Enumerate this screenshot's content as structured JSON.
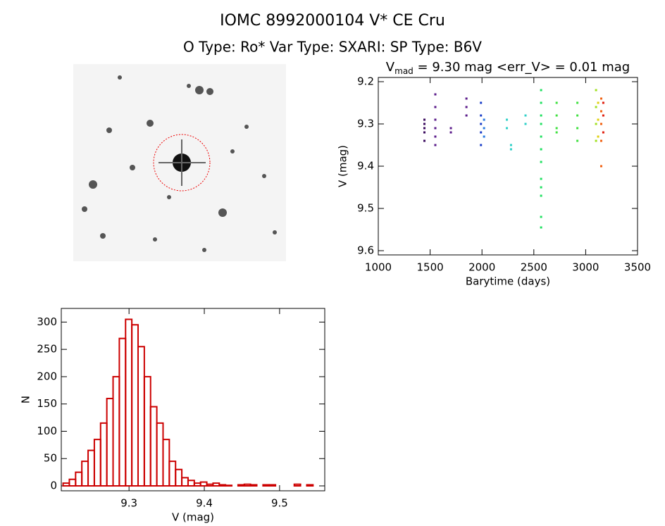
{
  "header": {
    "title": "IOMC 8992000104   V* CE Cru",
    "subtitle": "O Type: Ro*  Var Type: SXARI:  SP Type: B6V"
  },
  "chart_data": [
    {
      "type": "scatter",
      "title": {
        "main": "V",
        "sub": "mad",
        "rest": " = 9.30 mag <err_V> = 0.01 mag"
      },
      "x_label": "Barytime (days)",
      "y_label": "V (mag)",
      "xlim": [
        1000,
        3500
      ],
      "xticks": [
        1000,
        1500,
        2000,
        2500,
        3000,
        3500
      ],
      "ylim": [
        9.19,
        9.61
      ],
      "yticks": [
        9.2,
        9.3,
        9.4,
        9.5,
        9.6
      ],
      "y_inverted": true,
      "series": [
        {
          "color": "#3a0a5e",
          "x": [
            1445,
            1445,
            1445,
            1445,
            1445
          ],
          "values": [
            9.29,
            9.3,
            9.31,
            9.32,
            9.34
          ]
        },
        {
          "color": "#5a1a8a",
          "x": [
            1550,
            1550,
            1550,
            1550,
            1550,
            1550,
            1700,
            1700,
            1850,
            1850,
            1850
          ],
          "values": [
            9.23,
            9.26,
            9.29,
            9.31,
            9.33,
            9.35,
            9.31,
            9.32,
            9.24,
            9.26,
            9.28
          ]
        },
        {
          "color": "#1a3ec8",
          "x": [
            1990,
            1990,
            1990,
            1990,
            1990
          ],
          "values": [
            9.25,
            9.28,
            9.3,
            9.32,
            9.35
          ]
        },
        {
          "color": "#2a7ae0",
          "x": [
            2020,
            2020,
            2020
          ],
          "values": [
            9.29,
            9.31,
            9.33
          ]
        },
        {
          "color": "#30d0c8",
          "x": [
            2240,
            2240,
            2280,
            2280,
            2420,
            2420
          ],
          "values": [
            9.29,
            9.31,
            9.35,
            9.36,
            9.28,
            9.3
          ]
        },
        {
          "color": "#20e060",
          "x": [
            2570,
            2570,
            2570,
            2570,
            2570,
            2570,
            2570,
            2570,
            2570,
            2570,
            2570,
            2570
          ],
          "values": [
            9.22,
            9.25,
            9.28,
            9.3,
            9.33,
            9.36,
            9.39,
            9.43,
            9.45,
            9.47,
            9.52,
            9.545
          ]
        },
        {
          "color": "#40e040",
          "x": [
            2720,
            2720,
            2720,
            2720,
            2920,
            2920,
            2920,
            2920
          ],
          "values": [
            9.25,
            9.28,
            9.31,
            9.32,
            9.25,
            9.28,
            9.31,
            9.34
          ]
        },
        {
          "color": "#a0e020",
          "x": [
            3100,
            3100,
            3100,
            3100
          ],
          "values": [
            9.22,
            9.26,
            9.3,
            9.34
          ]
        },
        {
          "color": "#e0d010",
          "x": [
            3120,
            3120,
            3120
          ],
          "values": [
            9.25,
            9.29,
            9.33
          ]
        },
        {
          "color": "#f06010",
          "x": [
            3150,
            3150,
            3150,
            3150,
            3150
          ],
          "values": [
            9.24,
            9.27,
            9.3,
            9.34,
            9.4
          ]
        },
        {
          "color": "#e02010",
          "x": [
            3170,
            3170,
            3170
          ],
          "values": [
            9.25,
            9.28,
            9.32
          ]
        }
      ]
    },
    {
      "type": "histogram",
      "x_label": "V (mag)",
      "y_label": "N",
      "color": "#cc0000",
      "xlim": [
        9.21,
        9.56
      ],
      "xticks": [
        9.3,
        9.4,
        9.5
      ],
      "ylim": [
        -9,
        325
      ],
      "yticks": [
        0,
        50,
        100,
        150,
        200,
        250,
        300
      ],
      "bins": [
        9.2124,
        9.2207,
        9.229,
        9.2373,
        9.2456,
        9.2539,
        9.2622,
        9.2705,
        9.2788,
        9.2871,
        9.2954,
        9.3037,
        9.312,
        9.3203,
        9.3286,
        9.3369,
        9.3452,
        9.3535,
        9.3618,
        9.3701,
        9.3784,
        9.3867,
        9.395,
        9.4033,
        9.4116,
        9.4199,
        9.4282,
        9.4365,
        9.4448,
        9.4531,
        9.4614,
        9.4697,
        9.478,
        9.4863,
        9.4946,
        9.5029,
        9.5112,
        9.5195,
        9.5278,
        9.5361,
        9.5444
      ],
      "values": [
        5,
        12,
        25,
        45,
        65,
        85,
        115,
        160,
        200,
        270,
        305,
        295,
        255,
        200,
        145,
        115,
        85,
        45,
        30,
        15,
        10,
        5,
        7,
        3,
        5,
        2,
        1,
        0,
        2,
        3,
        2,
        0,
        2,
        2,
        0,
        0,
        0,
        3,
        0,
        2
      ]
    }
  ]
}
